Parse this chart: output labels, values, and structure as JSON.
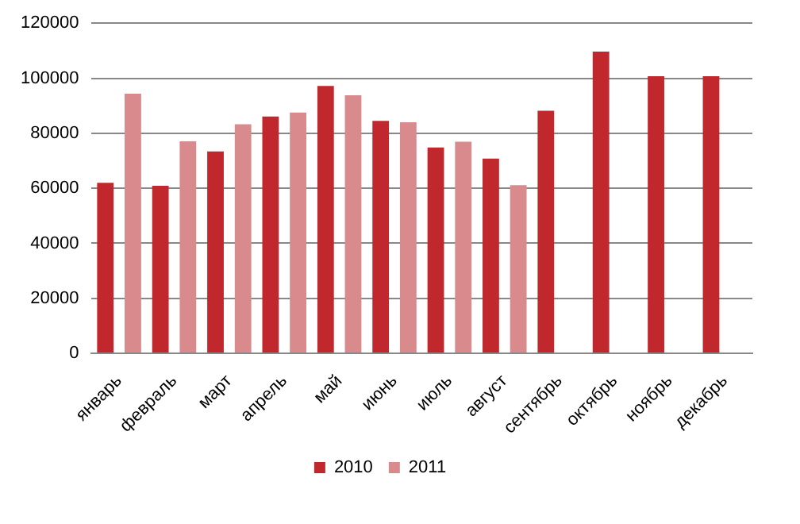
{
  "chart_data": {
    "type": "bar",
    "categories": [
      "январь",
      "февраль",
      "март",
      "апрель",
      "май",
      "июнь",
      "июль",
      "август",
      "сентябрь",
      "октябрь",
      "ноябрь",
      "декабрь"
    ],
    "series": [
      {
        "name": "2010",
        "color": "#c0282d",
        "values": [
          62000,
          60900,
          73400,
          86100,
          97200,
          84500,
          74800,
          70800,
          88200,
          109700,
          100700,
          100700
        ]
      },
      {
        "name": "2011",
        "color": "#d88a8c",
        "values": [
          94400,
          77100,
          83300,
          87500,
          93800,
          84000,
          76900,
          61100,
          null,
          null,
          null,
          null
        ]
      }
    ],
    "ylim": [
      0,
      120000
    ],
    "yticks": [
      0,
      20000,
      40000,
      60000,
      80000,
      100000,
      120000
    ],
    "grid": "y",
    "legend": "bottom"
  }
}
